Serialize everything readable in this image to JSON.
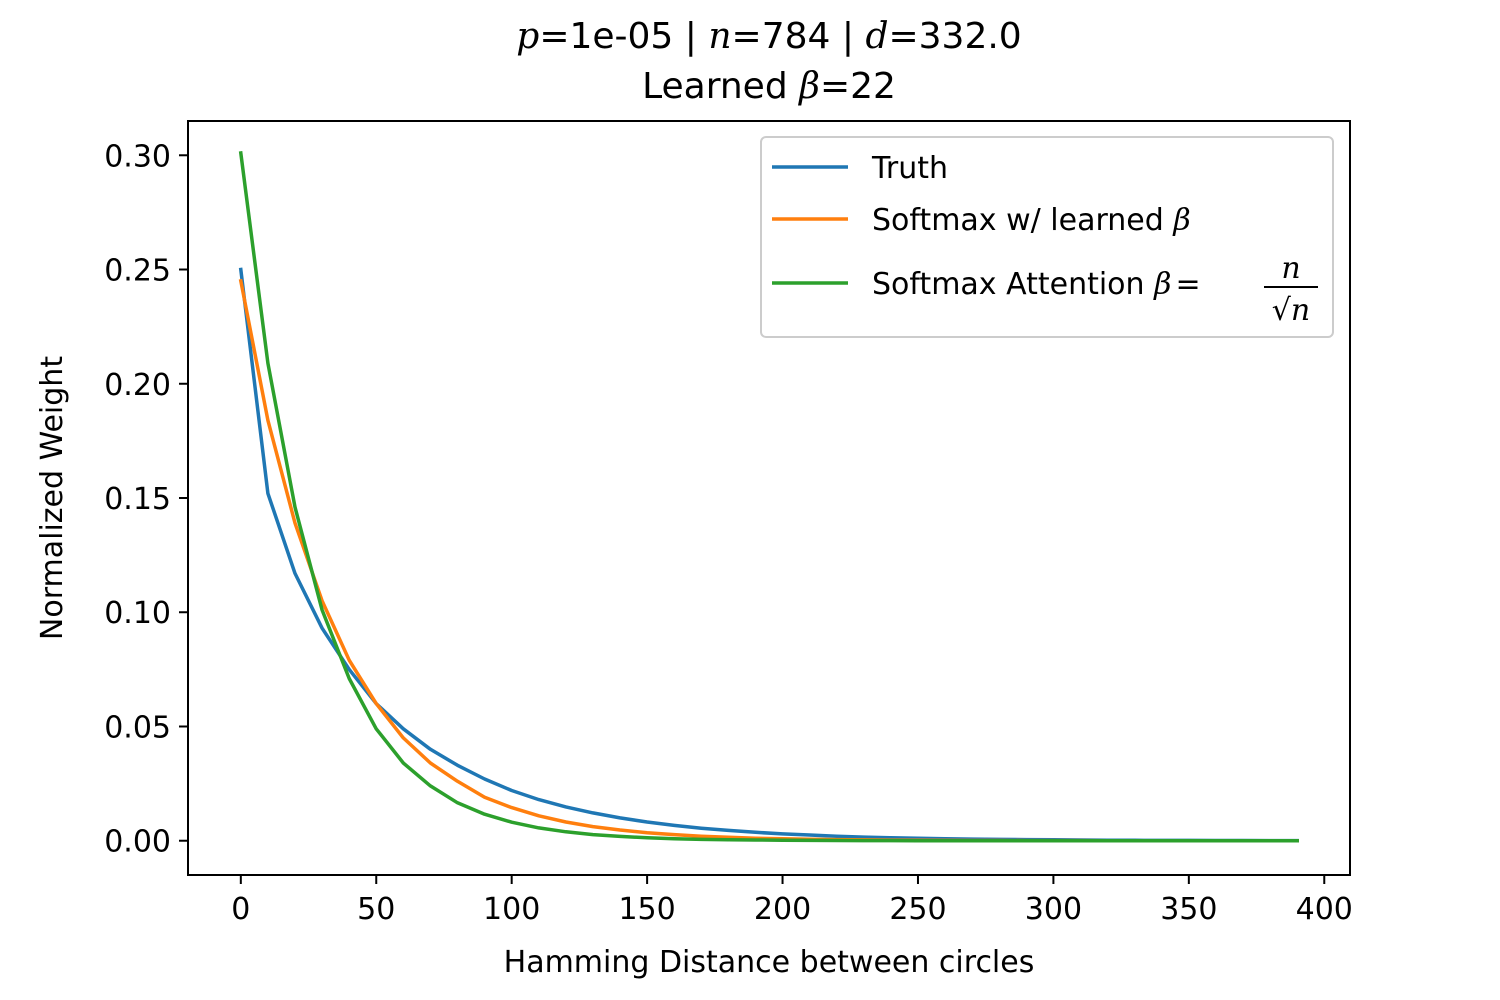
{
  "chart_data": {
    "type": "line",
    "title_line1_parts": [
      {
        "text": "p",
        "italic": true
      },
      {
        "text": "=1e-05 | ",
        "italic": false
      },
      {
        "text": "n",
        "italic": true
      },
      {
        "text": "=784 | ",
        "italic": false
      },
      {
        "text": "d",
        "italic": true
      },
      {
        "text": "=332.0",
        "italic": false
      }
    ],
    "title_line2_parts": [
      {
        "text": "Learned ",
        "italic": false
      },
      {
        "text": "β",
        "italic": true
      },
      {
        "text": "=22",
        "italic": false
      }
    ],
    "xlabel": "Hamming Distance between circles",
    "ylabel": "Normalized Weight",
    "xlim": [
      -19.5,
      409.5
    ],
    "ylim": [
      -0.015,
      0.315
    ],
    "xticks": [
      0,
      50,
      100,
      150,
      200,
      250,
      300,
      350,
      400
    ],
    "xtick_labels": [
      "0",
      "50",
      "100",
      "150",
      "200",
      "250",
      "300",
      "350",
      "400"
    ],
    "yticks": [
      0.0,
      0.05,
      0.1,
      0.15,
      0.2,
      0.25,
      0.3
    ],
    "ytick_labels": [
      "0.00",
      "0.05",
      "0.10",
      "0.15",
      "0.20",
      "0.25",
      "0.30"
    ],
    "grid": false,
    "legend_position": "top-right",
    "legend_labels": {
      "truth": "Truth",
      "learned_prefix": "Softmax w/ learned ",
      "learned_symbol": "β",
      "attention_prefix": "Softmax Attention ",
      "attention_symbol": "β",
      "attention_eq": "=",
      "attention_num": "n",
      "attention_den": "√n"
    },
    "x": [
      0,
      10,
      20,
      30,
      40,
      50,
      60,
      70,
      80,
      90,
      100,
      110,
      120,
      130,
      140,
      150,
      160,
      170,
      180,
      190,
      200,
      210,
      220,
      230,
      240,
      250,
      260,
      270,
      280,
      290,
      300,
      310,
      320,
      330,
      340,
      350,
      360,
      370,
      380,
      390
    ],
    "series": [
      {
        "name": "Truth",
        "color": "#1f77b4",
        "values": [
          0.25,
          0.152,
          0.117,
          0.093,
          0.075,
          0.06,
          0.049,
          0.04,
          0.033,
          0.027,
          0.022,
          0.018,
          0.0148,
          0.0122,
          0.01,
          0.0082,
          0.0067,
          0.0055,
          0.0045,
          0.0037,
          0.003,
          0.0025,
          0.002,
          0.0016,
          0.0013,
          0.0011,
          0.0009,
          0.0007,
          0.0006,
          0.0005,
          0.0004,
          0.0003,
          0.00025,
          0.0002,
          0.00016,
          0.00013,
          0.0001,
          8e-05,
          6e-05,
          5e-05
        ]
      },
      {
        "name": "Softmax w/ learned β",
        "color": "#ff7f0e",
        "values": [
          0.245,
          0.184,
          0.139,
          0.105,
          0.079,
          0.06,
          0.045,
          0.034,
          0.026,
          0.019,
          0.0145,
          0.0109,
          0.0082,
          0.0062,
          0.0047,
          0.0035,
          0.0027,
          0.002,
          0.0015,
          0.0011,
          0.00086,
          0.00065,
          0.00049,
          0.00037,
          0.00028,
          0.00021,
          0.00016,
          0.00012,
          9e-05,
          7e-05,
          5e-05,
          4e-05,
          3e-05,
          2e-05,
          2e-05,
          1e-05,
          1e-05,
          1e-05,
          0.0,
          0.0
        ]
      },
      {
        "name": "Softmax Attention β = n/√n",
        "color": "#2ca02c",
        "values": [
          0.301,
          0.209,
          0.146,
          0.101,
          0.071,
          0.049,
          0.034,
          0.024,
          0.0166,
          0.0116,
          0.0081,
          0.0056,
          0.0039,
          0.0027,
          0.0019,
          0.0013,
          0.0009,
          0.0006,
          0.00045,
          0.0003,
          0.00022,
          0.00015,
          0.0001,
          7e-05,
          5e-05,
          3e-05,
          2e-05,
          2e-05,
          1e-05,
          1e-05,
          0.0,
          0.0,
          0.0,
          0.0,
          0.0,
          0.0,
          0.0,
          0.0,
          0.0,
          0.0
        ]
      }
    ]
  }
}
